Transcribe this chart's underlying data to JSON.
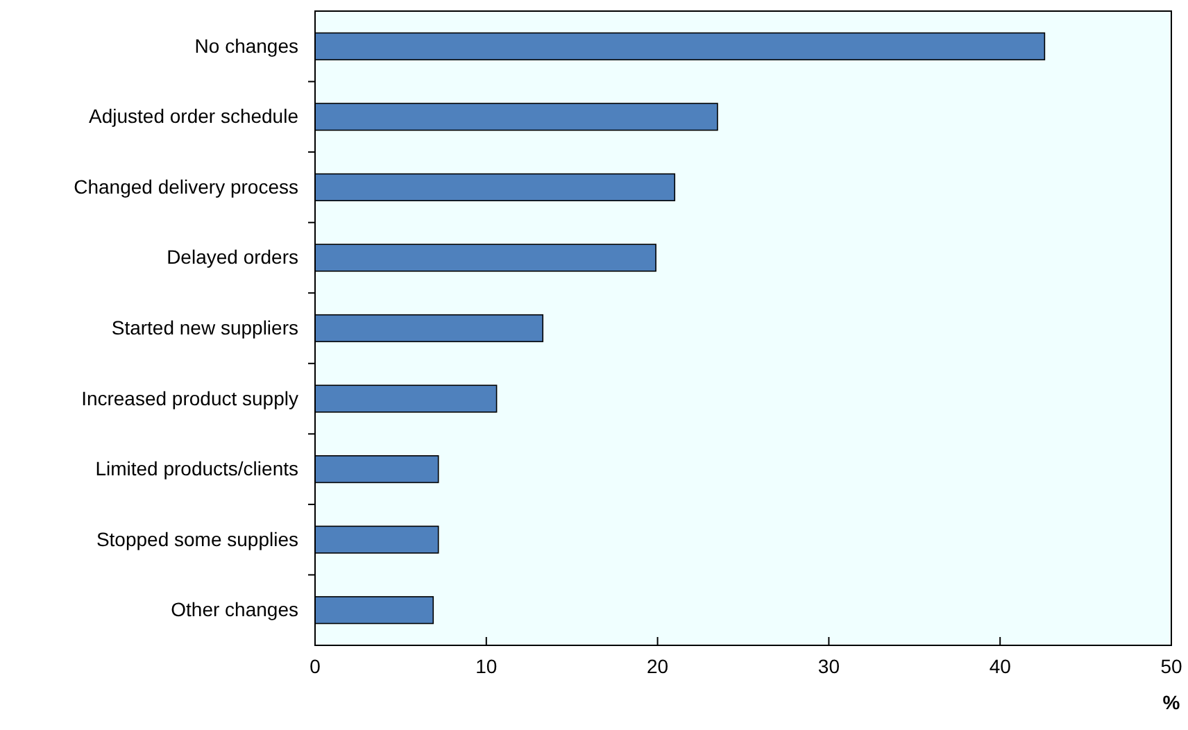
{
  "chart_data": {
    "type": "bar",
    "orientation": "horizontal",
    "categories": [
      "No changes",
      "Adjusted order schedule",
      "Changed delivery process",
      "Delayed orders",
      "Started new suppliers",
      "Increased product supply",
      "Limited products/clients",
      "Stopped some supplies",
      "Other changes"
    ],
    "values": [
      42.6,
      23.5,
      21.0,
      19.9,
      13.3,
      10.6,
      7.2,
      7.2,
      6.9
    ],
    "color": "#4f81bd",
    "xlim": [
      0,
      50
    ],
    "xticks": [
      0,
      10,
      20,
      30,
      40,
      50
    ],
    "xlabel": "%",
    "grid": false
  }
}
